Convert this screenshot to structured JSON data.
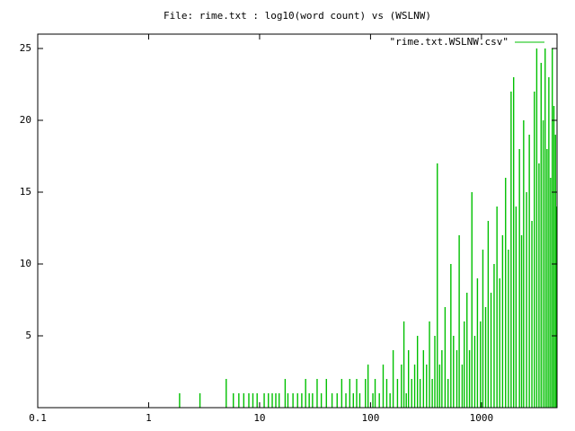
{
  "chart_data": {
    "type": "impulse",
    "title": "File: rime.txt : log10(word count) vs (WSLNW)",
    "xscale": "log",
    "xlim": [
      0.1,
      4800
    ],
    "ylim": [
      0,
      26
    ],
    "xticks": [
      0.1,
      1,
      10,
      100,
      1000
    ],
    "yticks": [
      5,
      10,
      15,
      20,
      25
    ],
    "legend": "top-right",
    "x": [
      1.9,
      2.9,
      5,
      5.8,
      6.5,
      7.2,
      8,
      8.7,
      9.5,
      11,
      12,
      13,
      14,
      15,
      17,
      18,
      20,
      22,
      24,
      26,
      28,
      30,
      33,
      36,
      40,
      45,
      50,
      55,
      60,
      65,
      70,
      75,
      80,
      90,
      95,
      105,
      110,
      120,
      130,
      140,
      150,
      160,
      175,
      190,
      200,
      210,
      220,
      235,
      250,
      265,
      280,
      300,
      320,
      340,
      360,
      380,
      400,
      420,
      440,
      470,
      500,
      530,
      560,
      600,
      630,
      670,
      700,
      740,
      780,
      820,
      870,
      920,
      980,
      1030,
      1090,
      1150,
      1220,
      1300,
      1380,
      1460,
      1550,
      1650,
      1750,
      1850,
      1950,
      2050,
      2200,
      2300,
      2400,
      2550,
      2700,
      2850,
      3000,
      3150,
      3300,
      3450,
      3600,
      3750,
      3900,
      4050,
      4200,
      4350,
      4500,
      4650,
      4750
    ],
    "series": [
      {
        "name": "\"rime.txt.WSLNW.csv\"",
        "color": "#00c000",
        "values": [
          1,
          1,
          2,
          1,
          1,
          1,
          1,
          1,
          1,
          1,
          1,
          1,
          1,
          1,
          2,
          1,
          1,
          1,
          1,
          2,
          1,
          1,
          2,
          1,
          2,
          1,
          1,
          2,
          1,
          2,
          1,
          2,
          1,
          2,
          3,
          1,
          2,
          1,
          3,
          2,
          1,
          4,
          2,
          3,
          6,
          1,
          4,
          2,
          3,
          5,
          2,
          4,
          3,
          6,
          2,
          5,
          17,
          3,
          4,
          7,
          2,
          10,
          5,
          4,
          12,
          3,
          6,
          8,
          4,
          15,
          5,
          9,
          6,
          11,
          7,
          13,
          8,
          10,
          14,
          9,
          12,
          16,
          11,
          22,
          23,
          14,
          18,
          12,
          20,
          15,
          19,
          13,
          22,
          25,
          17,
          24,
          20,
          25,
          18,
          23,
          16,
          25,
          21,
          19,
          14
        ]
      }
    ]
  }
}
